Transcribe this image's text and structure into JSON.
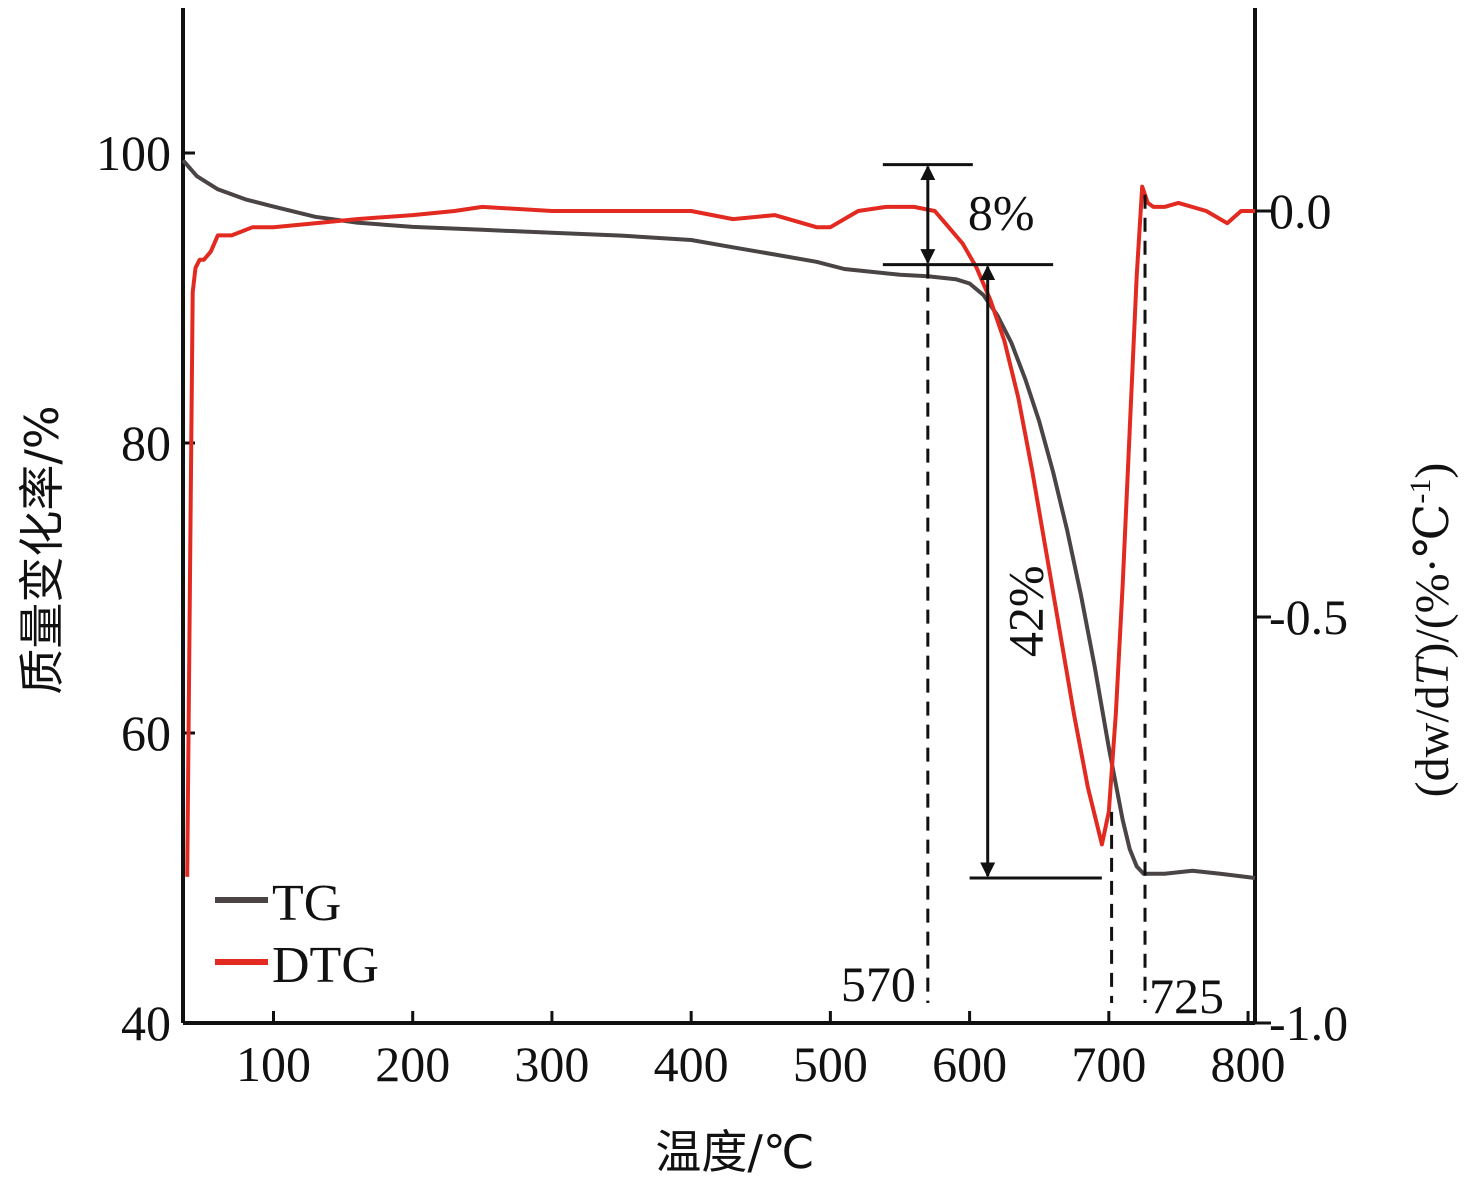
{
  "chart_data": {
    "type": "line",
    "xlabel": "温度/℃",
    "ylabel_left": "质量变化率/%",
    "ylabel_right": {
      "part1": "(dw/d",
      "part2": "T",
      "part3": ")/(%·℃",
      "sup": "-1",
      "part4": ")"
    },
    "xlim": [
      35,
      805
    ],
    "x_ticks": [
      100,
      200,
      300,
      400,
      500,
      600,
      700,
      800
    ],
    "ylim_left": [
      40,
      110
    ],
    "y_ticks_left": [
      40,
      60,
      80,
      100
    ],
    "ylim_right": [
      -1.0,
      0.25
    ],
    "y_ticks_right": [
      -1.0,
      -0.5,
      0.0
    ],
    "y_ticks_right_labels": [
      "-1.0",
      "-0.5",
      "0.0"
    ],
    "legend_position": "bottom-left",
    "series": [
      {
        "name": "TG",
        "axis": "left",
        "color": "#4a4444",
        "x": [
          35,
          45,
          60,
          80,
          100,
          130,
          160,
          200,
          250,
          300,
          350,
          400,
          430,
          460,
          490,
          510,
          530,
          550,
          570,
          590,
          600,
          610,
          620,
          630,
          640,
          650,
          660,
          670,
          680,
          690,
          700,
          710,
          715,
          720,
          725,
          740,
          760,
          780,
          805
        ],
        "y": [
          99.5,
          98.4,
          97.5,
          96.8,
          96.3,
          95.6,
          95.2,
          94.9,
          94.7,
          94.5,
          94.3,
          94.0,
          93.5,
          93.0,
          92.5,
          92.0,
          91.8,
          91.6,
          91.5,
          91.3,
          91.0,
          90.2,
          88.8,
          86.9,
          84.4,
          81.5,
          78.0,
          74.0,
          69.5,
          64.5,
          59.0,
          54.0,
          52.0,
          50.8,
          50.3,
          50.3,
          50.5,
          50.3,
          50.0
        ]
      },
      {
        "name": "DTG",
        "axis": "right",
        "color": "#e22a21",
        "x": [
          38,
          40,
          42,
          44,
          47,
          50,
          55,
          60,
          70,
          85,
          100,
          130,
          160,
          200,
          230,
          250,
          300,
          350,
          400,
          430,
          460,
          490,
          500,
          520,
          540,
          560,
          575,
          585,
          595,
          605,
          615,
          625,
          635,
          645,
          655,
          665,
          675,
          685,
          695,
          700,
          705,
          710,
          715,
          720,
          724,
          728,
          732,
          736,
          740,
          750,
          770,
          785,
          795,
          805
        ],
        "y": [
          -0.82,
          -0.45,
          -0.1,
          -0.07,
          -0.06,
          -0.06,
          -0.05,
          -0.03,
          -0.03,
          -0.02,
          -0.02,
          -0.015,
          -0.01,
          -0.005,
          0.0,
          0.005,
          0.0,
          0.0,
          0.0,
          -0.01,
          -0.005,
          -0.02,
          -0.02,
          0.0,
          0.005,
          0.005,
          0.0,
          -0.02,
          -0.04,
          -0.07,
          -0.11,
          -0.16,
          -0.23,
          -0.32,
          -0.42,
          -0.52,
          -0.62,
          -0.71,
          -0.78,
          -0.74,
          -0.62,
          -0.46,
          -0.27,
          -0.08,
          0.03,
          0.01,
          0.005,
          0.005,
          0.005,
          0.01,
          0.0,
          -0.015,
          0.0,
          0.0
        ]
      }
    ],
    "annotations": {
      "label_8": "8%",
      "label_42": "42%",
      "label_570": "570",
      "label_725": "725",
      "ref_lines": {
        "top_line_y": 99.2,
        "mid_line_y": 92.3,
        "bottom_line_y": 50.0,
        "dashed_x": [
          570,
          702,
          726
        ]
      }
    }
  }
}
